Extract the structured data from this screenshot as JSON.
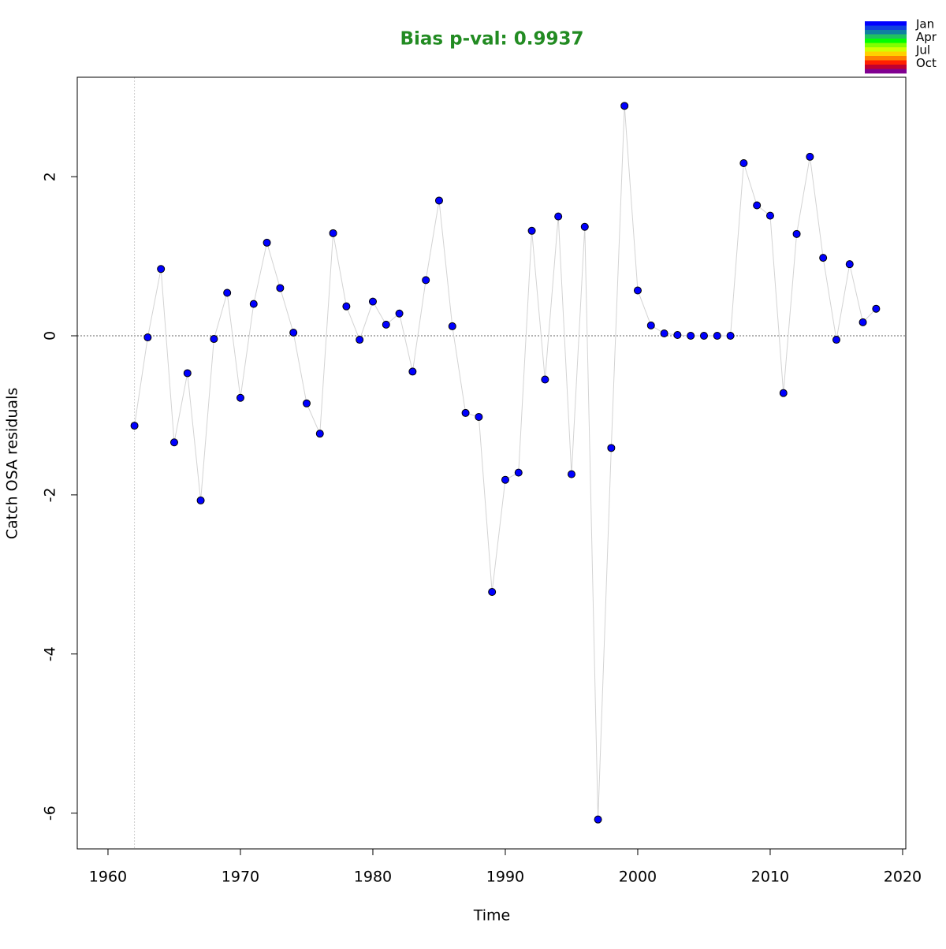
{
  "chart_data": {
    "type": "line",
    "title": "Bias p-val: 0.9937",
    "title_color": "#228b22",
    "xlabel": "Time",
    "ylabel": "Catch OSA residuals",
    "x": [
      1962,
      1963,
      1964,
      1965,
      1966,
      1967,
      1968,
      1969,
      1970,
      1971,
      1972,
      1973,
      1974,
      1975,
      1976,
      1977,
      1978,
      1979,
      1980,
      1981,
      1982,
      1983,
      1984,
      1985,
      1986,
      1987,
      1988,
      1989,
      1990,
      1991,
      1992,
      1993,
      1994,
      1995,
      1996,
      1997,
      1998,
      1999,
      2000,
      2001,
      2002,
      2003,
      2004,
      2005,
      2006,
      2007,
      2008,
      2009,
      2010,
      2011,
      2012,
      2013,
      2014,
      2015,
      2016,
      2017,
      2018
    ],
    "series": [
      {
        "color": "#0000ff",
        "line_color": "#d3d3d3",
        "values": [
          -1.13,
          -0.02,
          0.84,
          -1.34,
          -0.47,
          -2.07,
          -0.04,
          0.54,
          -0.78,
          0.4,
          1.17,
          0.6,
          0.04,
          -0.85,
          -1.23,
          1.29,
          0.37,
          -0.05,
          0.43,
          0.14,
          0.28,
          -0.45,
          0.7,
          1.7,
          0.12,
          -0.97,
          -1.02,
          -3.22,
          -1.81,
          -1.72,
          1.32,
          -0.55,
          1.5,
          -1.74,
          1.37,
          -6.08,
          -1.41,
          2.89,
          0.57,
          0.13,
          0.03,
          0.01,
          0,
          0,
          0,
          0,
          2.17,
          1.64,
          1.51,
          -0.72,
          1.28,
          2.25,
          0.98,
          -0.05,
          0.9,
          0.17,
          0.34
        ]
      }
    ],
    "xlim": [
      1957.68,
      2020.24
    ],
    "ylim": [
      -6.45,
      3.25
    ],
    "xticks": [
      1960,
      1970,
      1980,
      1990,
      2000,
      2010,
      2020
    ],
    "yticks": [
      -6,
      -4,
      -2,
      0,
      2
    ],
    "hline": 0,
    "vline": 1962,
    "legend": {
      "labels": [
        "Jan",
        "Apr",
        "Jul",
        "Oct"
      ],
      "colors": [
        "#0000ff",
        "#1040e0",
        "#1080a0",
        "#20c060",
        "#00ff00",
        "#80ff00",
        "#d0ff00",
        "#ffd000",
        "#ff8000",
        "#ff2000",
        "#c00030",
        "#800090"
      ]
    }
  }
}
